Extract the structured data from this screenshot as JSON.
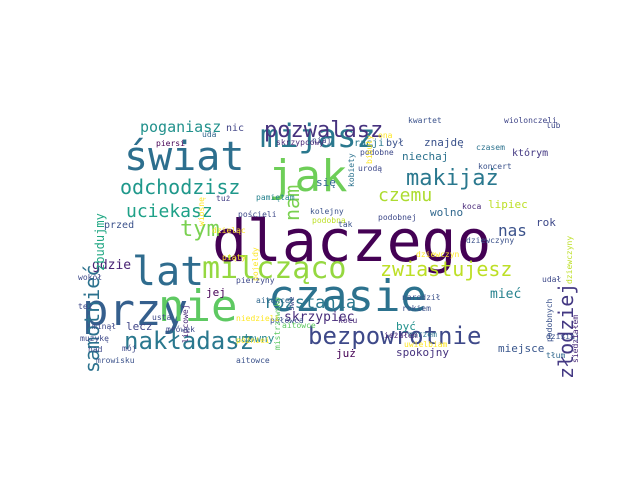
{
  "wordcloud": {
    "words": [
      {
        "text": "dlaczego",
        "color": "#440154"
      },
      {
        "text": "czasie",
        "color": "#2c728e"
      },
      {
        "text": "świat",
        "color": "#2d6f8e"
      },
      {
        "text": "jak",
        "color": "#6ece58"
      },
      {
        "text": "przy",
        "color": "#355f8d"
      },
      {
        "text": "nie",
        "color": "#5ec962"
      },
      {
        "text": "lat",
        "color": "#2f6c8e"
      },
      {
        "text": "mijasz",
        "color": "#2a788e"
      },
      {
        "text": "milcząco",
        "color": "#95d840"
      },
      {
        "text": "bezpowrotnie",
        "color": "#3e4989"
      },
      {
        "text": "nakładasz",
        "color": "#2a788e"
      },
      {
        "text": "pozwalasz",
        "color": "#46327e"
      },
      {
        "text": "makijaż",
        "color": "#2a788e"
      },
      {
        "text": "odchodzisz",
        "color": "#1f988b"
      },
      {
        "text": "samotnieć",
        "color": "#2c728e"
      },
      {
        "text": "zwiastujesz",
        "color": "#bddf26"
      },
      {
        "text": "czemu",
        "color": "#addc30"
      },
      {
        "text": "tym",
        "color": "#7ad151"
      },
      {
        "text": "nam",
        "color": "#7ad151"
      },
      {
        "text": "złodziej",
        "color": "#443983"
      },
      {
        "text": "uciekasz",
        "color": "#1fa188"
      },
      {
        "text": "rozstania",
        "color": "#2a788e"
      },
      {
        "text": "nas",
        "color": "#3b528b"
      },
      {
        "text": "poganiasz",
        "color": "#21918c"
      },
      {
        "text": "skrzypiec",
        "color": "#472d7b"
      },
      {
        "text": "gdzie",
        "color": "#482173"
      },
      {
        "text": "się",
        "color": "#31688e"
      },
      {
        "text": "mieć",
        "color": "#26828e"
      },
      {
        "text": "zbudujmy",
        "color": "#22a884"
      },
      {
        "text": "którym",
        "color": "#443983"
      },
      {
        "text": "lecz",
        "color": "#404688"
      },
      {
        "text": "jej",
        "color": "#440154"
      },
      {
        "text": "cudowny",
        "color": "#24868e"
      },
      {
        "text": "spokojny",
        "color": "#46327e"
      },
      {
        "text": "miejsce",
        "color": "#39568c"
      },
      {
        "text": "niechaj",
        "color": "#2c728e"
      },
      {
        "text": "znajdę",
        "color": "#3b528b"
      },
      {
        "text": "lipiec",
        "color": "#bddf26"
      },
      {
        "text": "rok",
        "color": "#3e4989"
      },
      {
        "text": "wolno",
        "color": "#31688e"
      },
      {
        "text": "być",
        "color": "#21918c"
      },
      {
        "text": "przed",
        "color": "#3b528b"
      },
      {
        "text": "racji",
        "color": "#2a788e"
      },
      {
        "text": "był",
        "color": "#3b528b"
      },
      {
        "text": "nic",
        "color": "#414487"
      },
      {
        "text": "już",
        "color": "#440154"
      },
      {
        "text": "mój",
        "color": "#3e4989"
      },
      {
        "text": "piersi",
        "color": "#440154"
      },
      {
        "text": "uda",
        "color": "#31688e"
      },
      {
        "text": "tuż",
        "color": "#433e85"
      },
      {
        "text": "lipcowej",
        "color": "#482878"
      },
      {
        "text": "kwartet",
        "color": "#3b528b"
      },
      {
        "text": "wiolonczeli",
        "color": "#404688"
      },
      {
        "text": "lub",
        "color": "#3e4989"
      },
      {
        "text": "skrzypcowy",
        "color": "#482878"
      },
      {
        "text": "kobiety",
        "color": "#2c728e"
      },
      {
        "text": "ona",
        "color": "#fde725"
      },
      {
        "text": "czasem",
        "color": "#2c728e"
      },
      {
        "text": "koncert",
        "color": "#3b528b"
      },
      {
        "text": "dziewczyny",
        "color": "#3b528b"
      },
      {
        "text": "koca",
        "color": "#482878"
      },
      {
        "text": "urodą",
        "color": "#3e4989"
      },
      {
        "text": "kolejny",
        "color": "#3b528b"
      },
      {
        "text": "podobna",
        "color": "#bddf26"
      },
      {
        "text": "podobnej",
        "color": "#3e4989"
      },
      {
        "text": "pamiętam",
        "color": "#26828e"
      },
      {
        "text": "podobne",
        "color": "#3e4989"
      },
      {
        "text": "połowca",
        "color": "#3b528b"
      },
      {
        "text": "aitowce",
        "color": "#31688e"
      },
      {
        "text": "kocu",
        "color": "#482878"
      },
      {
        "text": "mistrzowsko",
        "color": "#5ec962"
      },
      {
        "text": "tak",
        "color": "#3b528b"
      },
      {
        "text": "swe",
        "color": "#3e4989"
      },
      {
        "text": "udał",
        "color": "#3e4989"
      },
      {
        "text": "podobnych",
        "color": "#3b528b"
      },
      {
        "text": "dzisiaj",
        "color": "#3b528b"
      },
      {
        "text": "tłum",
        "color": "#31688e"
      },
      {
        "text": "siedziałem",
        "color": "#482878"
      },
      {
        "text": "dziewczyn",
        "color": "#fde725"
      },
      {
        "text": "narodził",
        "color": "#3b528b"
      },
      {
        "text": "morzem",
        "color": "#2c728e"
      },
      {
        "text": "uwielbiam",
        "color": "#fde725"
      },
      {
        "text": "rokiem",
        "color": "#3b528b"
      },
      {
        "text": "ieżałem",
        "color": "#482878"
      },
      {
        "text": "piąty",
        "color": "#fde725"
      },
      {
        "text": "niedzieli",
        "color": "#fde725"
      },
      {
        "text": "mrowisku",
        "color": "#3b528b"
      },
      {
        "text": "aitowce",
        "color": "#3b528b"
      },
      {
        "text": "pojeldy",
        "color": "#fde725"
      },
      {
        "text": "minął",
        "color": "#3e4989"
      },
      {
        "text": "muzykę",
        "color": "#3e4989"
      },
      {
        "text": "nad",
        "color": "#3e4989"
      },
      {
        "text": "usta",
        "color": "#3e4989"
      },
      {
        "text": "mrówek",
        "color": "#3e4989"
      },
      {
        "text": "też",
        "color": "#3e4989"
      },
      {
        "text": "wokół",
        "color": "#3e4989"
      },
      {
        "text": "dziewczyny",
        "color": "#bddf26"
      },
      {
        "text": "aitowce",
        "color": "#5ec962"
      },
      {
        "text": "niaj",
        "color": "#3e4989"
      },
      {
        "text": "bibuły",
        "color": "#fde725"
      },
      {
        "text": "wiosnę",
        "color": "#fde725"
      },
      {
        "text": "pierzyny",
        "color": "#3e4989"
      },
      {
        "text": "dzieląc",
        "color": "#fde725"
      },
      {
        "text": "pościeli",
        "color": "#3e4989"
      },
      {
        "text": "późniei",
        "color": "#fde725"
      }
    ]
  }
}
